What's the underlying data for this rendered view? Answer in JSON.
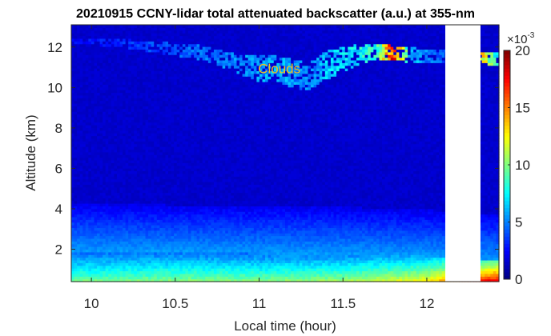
{
  "chart_data": {
    "type": "heatmap",
    "title": "20210915 CCNY-lidar total attenuated backscatter (a.u.) at 355-nm",
    "xlabel": "Local time (hour)",
    "ylabel": "Altitude (km)",
    "xlim": [
      9.88,
      12.43
    ],
    "ylim": [
      0.4,
      13.1
    ],
    "x_ticks": [
      10,
      10.5,
      11,
      11.5,
      12
    ],
    "x_tick_labels": [
      "10",
      "10.5",
      "11",
      "11.5",
      "12"
    ],
    "y_ticks": [
      2,
      4,
      6,
      8,
      10,
      12
    ],
    "y_tick_labels": [
      "2",
      "4",
      "6",
      "8",
      "10",
      "12"
    ],
    "colorbar": {
      "colormap": "jet",
      "range": [
        0,
        20
      ],
      "ticks": [
        0,
        5,
        10,
        15,
        20
      ],
      "tick_labels": [
        "0",
        "5",
        "10",
        "15",
        "20"
      ],
      "exponent_label": "×10",
      "exponent_power": "-3",
      "placement": "right"
    },
    "data_gap_hours": [
      12.11,
      12.32
    ],
    "annotations": [
      {
        "text": "Clouds",
        "x": 11.12,
        "y": 10.7,
        "color": "#f0c020"
      }
    ],
    "cloud_top_profile": {
      "x": [
        9.88,
        10.05,
        10.2,
        10.35,
        10.5,
        10.65,
        10.75,
        10.85,
        10.95,
        11.0,
        11.1,
        11.2,
        11.3,
        11.4,
        11.5,
        11.6,
        11.7,
        11.8,
        11.9,
        12.0,
        12.11,
        12.32,
        12.43
      ],
      "base_km": [
        12.2,
        12.1,
        12.0,
        11.8,
        11.6,
        11.4,
        11.1,
        10.8,
        10.5,
        10.3,
        10.4,
        10.0,
        9.9,
        10.4,
        10.8,
        11.2,
        11.4,
        11.3,
        11.2,
        11.2,
        11.3,
        11.2,
        11.1
      ],
      "top_km": [
        12.5,
        12.4,
        12.4,
        12.3,
        12.2,
        12.1,
        11.9,
        11.7,
        11.6,
        11.6,
        11.6,
        11.4,
        11.2,
        11.8,
        12.0,
        12.2,
        12.2,
        12.1,
        12.0,
        11.9,
        11.9,
        11.8,
        11.8
      ],
      "peak_value_e3": [
        3,
        3.5,
        4,
        4.5,
        5,
        5.5,
        6,
        6,
        6.5,
        6.5,
        7,
        6.5,
        6,
        7.5,
        8,
        9,
        10,
        20,
        8,
        6,
        5,
        16,
        8
      ]
    },
    "boundary_layer": {
      "x": [
        9.88,
        10.5,
        11.0,
        11.5,
        12.0,
        12.11,
        12.32,
        12.43
      ],
      "surface_value_e3": [
        10,
        10.5,
        10.5,
        11,
        13,
        15,
        18,
        19
      ],
      "mixed_layer_top_km": [
        1.9,
        1.9,
        1.8,
        1.8,
        1.7,
        1.6,
        1.5,
        1.5
      ],
      "residual_layer_top_km": [
        4.0,
        3.9,
        3.9,
        3.8,
        3.7,
        3.6,
        3.5,
        3.5
      ]
    },
    "free_troposphere_value_e3": 1.2,
    "grid": false
  }
}
